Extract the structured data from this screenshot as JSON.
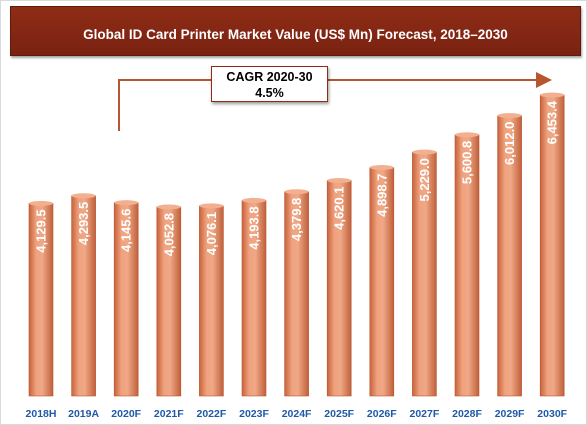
{
  "colors": {
    "title_bg": "#7a2211",
    "bar_fill": "#e6946e",
    "bar_edge": "#b8552f",
    "arrow": "#b8552f",
    "x_label": "#1f5aa6"
  },
  "chart_data": {
    "type": "bar",
    "title": "Global ID Card Printer Market Value (US$ Mn) Forecast, 2018–2030",
    "categories": [
      "2018H",
      "2019A",
      "2020F",
      "2021F",
      "2022F",
      "2023F",
      "2024F",
      "2025F",
      "2026F",
      "2027F",
      "2028F",
      "2029F",
      "2030F"
    ],
    "values": [
      4129.5,
      4293.5,
      4145.6,
      4052.8,
      4076.1,
      4193.8,
      4379.8,
      4620.1,
      4898.7,
      5229.0,
      5600.8,
      6012.0,
      6453.4
    ],
    "data_labels": [
      "4,129.5",
      "4,293.5",
      "4,145.6",
      "4,052.8",
      "4,076.1",
      "4,193.8",
      "4,379.8",
      "4,620.1",
      "4,898.7",
      "5,229.0",
      "5,600.8",
      "6,012.0",
      "6,453.4"
    ],
    "annotation": {
      "line1": "CAGR 2020-30",
      "line2": "4.5%"
    },
    "xlabel": "",
    "ylabel": "",
    "grid": false,
    "legend": "none"
  }
}
